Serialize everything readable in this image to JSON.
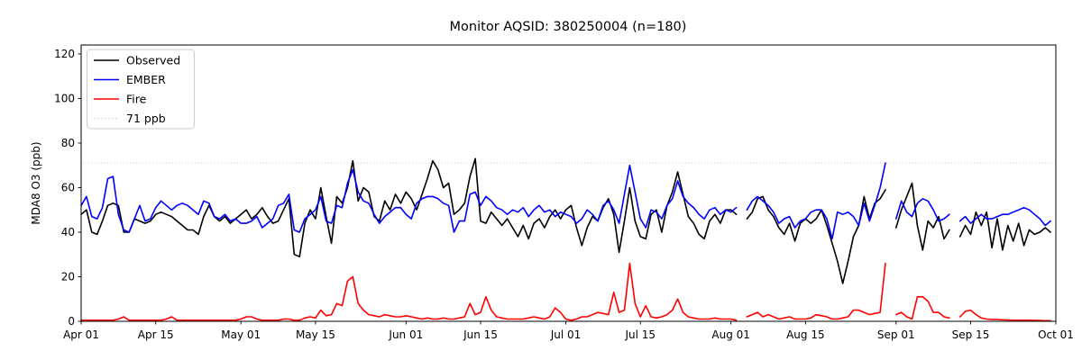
{
  "title": "Monitor AQSID: 380250004 (n=180)",
  "y_axis": {
    "label": "MDA8 O3 (ppb)",
    "ticks": [
      0,
      20,
      40,
      60,
      80,
      100,
      120
    ],
    "range": [
      0,
      124
    ]
  },
  "x_axis": {
    "range_days": 183,
    "ticks": [
      {
        "label": "Apr 01",
        "day": 0
      },
      {
        "label": "Apr 15",
        "day": 14
      },
      {
        "label": "May 01",
        "day": 30
      },
      {
        "label": "May 15",
        "day": 44
      },
      {
        "label": "Jun 01",
        "day": 61
      },
      {
        "label": "Jun 15",
        "day": 75
      },
      {
        "label": "Jul 01",
        "day": 91
      },
      {
        "label": "Jul 15",
        "day": 105
      },
      {
        "label": "Aug 01",
        "day": 122
      },
      {
        "label": "Aug 15",
        "day": 136
      },
      {
        "label": "Sep 01",
        "day": 153
      },
      {
        "label": "Sep 15",
        "day": 167
      },
      {
        "label": "Oct 01",
        "day": 183
      }
    ]
  },
  "threshold": {
    "value": 71,
    "label": "71 ppb",
    "color": "#d3d3d3"
  },
  "legend": {
    "items": [
      {
        "label": "Observed",
        "color": "#000000",
        "style": "solid"
      },
      {
        "label": "EMBER",
        "color": "#0000ff",
        "style": "solid"
      },
      {
        "label": "Fire",
        "color": "#ff0000",
        "style": "solid"
      },
      {
        "label": "71 ppb",
        "color": "#d3d3d3",
        "style": "dotted"
      }
    ]
  },
  "chart_data": {
    "type": "line",
    "title": "Monitor AQSID: 380250004 (n=180)",
    "xlabel": "",
    "ylabel": "MDA8 O3 (ppb)",
    "ylim": [
      0,
      124
    ],
    "x_start": "Apr 01",
    "x_end": "Sep 30",
    "x_unit": "day",
    "n_points": 180,
    "missing_dates": [
      "Aug 03",
      "Aug 31",
      "Sep 12"
    ],
    "legend_position": "upper left",
    "grid": false,
    "reference_line": {
      "label": "71 ppb",
      "value": 71
    },
    "series": [
      {
        "name": "Observed",
        "color": "#000000",
        "values": [
          48,
          50,
          40,
          39,
          45,
          52,
          53,
          52,
          40,
          40,
          46,
          45,
          44,
          45,
          48,
          49,
          48,
          47,
          45,
          43,
          41,
          41,
          39,
          47,
          52,
          47,
          45,
          47,
          44,
          46,
          48,
          50,
          46,
          48,
          51,
          47,
          44,
          45,
          50,
          55,
          30,
          29,
          44,
          50,
          46,
          60,
          47,
          35,
          56,
          53,
          60,
          72,
          54,
          60,
          58,
          47,
          45,
          54,
          50,
          57,
          53,
          58,
          55,
          50,
          57,
          64,
          72,
          68,
          60,
          62,
          48,
          50,
          53,
          65,
          73,
          45,
          44,
          49,
          46,
          43,
          46,
          42,
          38,
          43,
          37,
          44,
          46,
          42,
          47,
          50,
          46,
          50,
          52,
          42,
          34,
          42,
          47,
          45,
          51,
          55,
          48,
          31,
          45,
          60,
          45,
          38,
          37,
          48,
          50,
          40,
          52,
          58,
          67,
          57,
          47,
          44,
          39,
          37,
          45,
          48,
          44,
          50,
          50,
          48,
          null,
          46,
          49,
          55,
          56,
          50,
          47,
          42,
          39,
          44,
          36,
          44,
          46,
          44,
          46,
          50,
          43,
          35,
          27,
          17,
          27,
          38,
          43,
          56,
          46,
          53,
          55,
          59,
          null,
          42,
          50,
          56,
          62,
          43,
          32,
          45,
          42,
          47,
          37,
          41,
          null,
          38,
          43,
          39,
          49,
          43,
          49,
          33,
          46,
          32,
          43,
          36,
          44,
          34,
          41,
          39,
          40,
          42,
          40
        ]
      },
      {
        "name": "EMBER",
        "color": "#0000ff",
        "values": [
          52,
          56,
          47,
          46,
          51,
          64,
          65,
          48,
          41,
          40,
          46,
          52,
          45,
          46,
          51,
          54,
          52,
          50,
          52,
          53,
          52,
          50,
          48,
          54,
          53,
          47,
          46,
          48,
          45,
          46,
          44,
          44,
          45,
          47,
          42,
          44,
          46,
          52,
          53,
          57,
          41,
          40,
          46,
          48,
          50,
          56,
          45,
          44,
          52,
          51,
          62,
          68,
          58,
          54,
          53,
          48,
          44,
          47,
          49,
          51,
          51,
          48,
          46,
          53,
          55,
          56,
          56,
          55,
          53,
          52,
          40,
          45,
          45,
          57,
          58,
          52,
          56,
          54,
          51,
          50,
          48,
          50,
          49,
          51,
          47,
          50,
          52,
          49,
          50,
          47,
          49,
          48,
          47,
          44,
          46,
          50,
          48,
          45,
          52,
          54,
          50,
          44,
          57,
          70,
          58,
          46,
          42,
          50,
          49,
          46,
          52,
          55,
          63,
          56,
          53,
          51,
          48,
          46,
          50,
          51,
          48,
          50,
          49,
          51,
          null,
          50,
          54,
          56,
          54,
          52,
          49,
          44,
          46,
          47,
          42,
          45,
          46,
          49,
          50,
          50,
          46,
          37,
          49,
          48,
          49,
          47,
          43,
          53,
          45,
          52,
          60,
          71,
          null,
          46,
          54,
          49,
          47,
          53,
          55,
          54,
          50,
          45,
          46,
          48,
          null,
          45,
          47,
          44,
          46,
          48,
          46,
          46,
          47,
          48,
          48,
          49,
          50,
          51,
          50,
          48,
          46,
          43,
          45
        ]
      },
      {
        "name": "Fire",
        "color": "#ff0000",
        "values": [
          0.5,
          0.5,
          0.5,
          0.5,
          0.5,
          0.5,
          0.5,
          1,
          2,
          0.5,
          0.5,
          0.5,
          0.5,
          0.5,
          0.5,
          0.5,
          1,
          2,
          0.5,
          0.5,
          0.5,
          0.5,
          0.5,
          0.5,
          0.5,
          0.5,
          0.5,
          0.5,
          0.5,
          0.5,
          1,
          2,
          2,
          1,
          0.5,
          0.5,
          0.5,
          0.5,
          1,
          1,
          0.5,
          0.5,
          1.5,
          2,
          1.5,
          5,
          2.5,
          3,
          8,
          7,
          18,
          20,
          8,
          5,
          3,
          2.5,
          2,
          3,
          2.5,
          2,
          2,
          2.5,
          2,
          1.5,
          1,
          1.5,
          1,
          1,
          1.5,
          1,
          1,
          1.5,
          2,
          8,
          3,
          4,
          11,
          5,
          2,
          1.5,
          1,
          1,
          1,
          1,
          1.5,
          2,
          1.5,
          1,
          2,
          6,
          4,
          1,
          0.5,
          1,
          2,
          2,
          3,
          4,
          3.5,
          3,
          13,
          4,
          5,
          26,
          8,
          2,
          7,
          2,
          1.5,
          2,
          3,
          5,
          10,
          4,
          2,
          1.5,
          1,
          1,
          1,
          1.5,
          1,
          1,
          1,
          0.5,
          null,
          2,
          3,
          4,
          2,
          3,
          2,
          1,
          1.5,
          2,
          1,
          1,
          1,
          1.5,
          3,
          2.5,
          2,
          1,
          1,
          1.5,
          2,
          5,
          5,
          4,
          3,
          3.5,
          4,
          26,
          null,
          3,
          4,
          2,
          1,
          11,
          11,
          9,
          4,
          4,
          2,
          1.5,
          null,
          2,
          4.5,
          5,
          3,
          1.5,
          1,
          0.8,
          0.8,
          0.7,
          0.6,
          0.5,
          0.5,
          0.5,
          0.5,
          0.4,
          0.4,
          0.3,
          0.3
        ]
      }
    ]
  }
}
